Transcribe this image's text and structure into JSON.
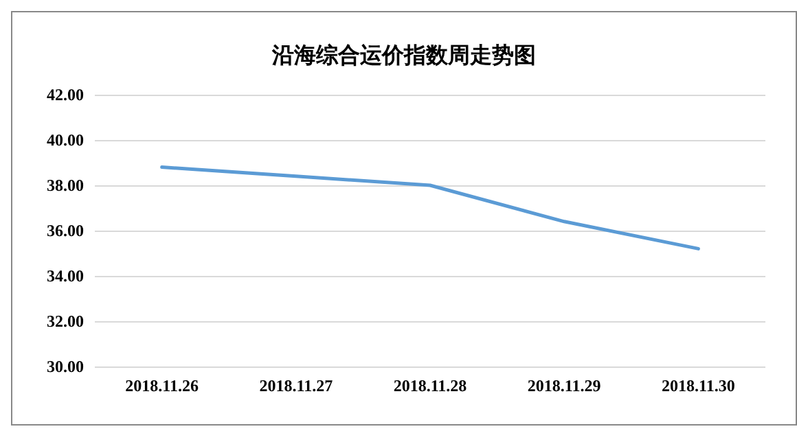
{
  "chart_data": {
    "type": "line",
    "title": "沿海综合运价指数周走势图",
    "categories": [
      "2018.11.26",
      "2018.11.27",
      "2018.11.28",
      "2018.11.29",
      "2018.11.30"
    ],
    "series": [
      {
        "color": "#5b9bd5",
        "values": [
          38.8,
          38.4,
          38.0,
          36.4,
          35.2
        ]
      }
    ],
    "ylim": [
      30,
      42
    ],
    "yticks": [
      {
        "value": 30,
        "label": "30.00"
      },
      {
        "value": 32,
        "label": "32.00"
      },
      {
        "value": 34,
        "label": "34.00"
      },
      {
        "value": 36,
        "label": "36.00"
      },
      {
        "value": 38,
        "label": "38.00"
      },
      {
        "value": 40,
        "label": "40.00"
      },
      {
        "value": 42,
        "label": "42.00"
      }
    ],
    "grid": "y",
    "marker": "none",
    "line_style": "solid"
  }
}
